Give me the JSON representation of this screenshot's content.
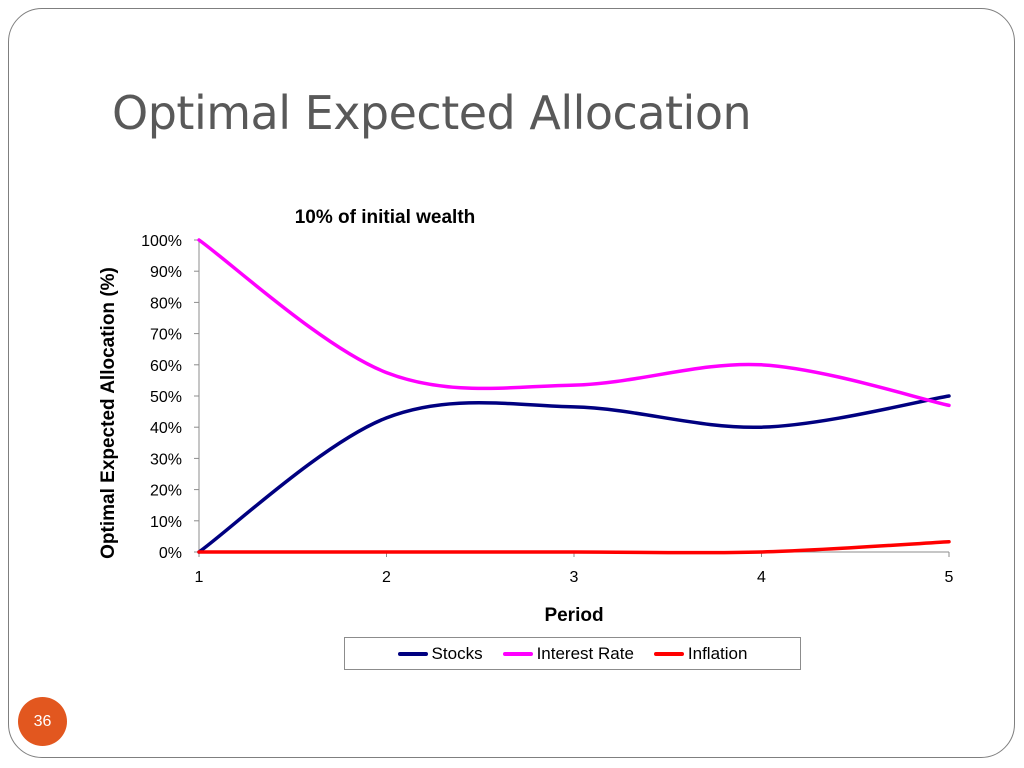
{
  "slide": {
    "title": "Optimal Expected Allocation",
    "number": "36"
  },
  "colors": {
    "frame": "#7f7f7f",
    "title": "#595959",
    "slide_number_bg": "#e2571f"
  },
  "chart_data": {
    "type": "line",
    "title": "10% of initial wealth",
    "xlabel": "Period",
    "ylabel": "Optimal Expected Allocation (%)",
    "x": [
      1,
      2,
      3,
      4,
      5
    ],
    "x_tick_labels": [
      "1",
      "2",
      "3",
      "4",
      "5"
    ],
    "ylim": [
      0,
      100
    ],
    "y_tick_labels": [
      "0%",
      "10%",
      "20%",
      "30%",
      "40%",
      "50%",
      "60%",
      "70%",
      "80%",
      "90%",
      "100%"
    ],
    "grid": false,
    "smooth": true,
    "legend_position": "bottom",
    "series": [
      {
        "name": "Stocks",
        "values": [
          0,
          43,
          46.5,
          40,
          50
        ],
        "color": "#000080"
      },
      {
        "name": "Interest Rate",
        "values": [
          100,
          57.5,
          53.5,
          60,
          47
        ],
        "color": "#ff00ff"
      },
      {
        "name": "Inflation",
        "values": [
          0,
          0,
          0,
          0,
          3.3
        ],
        "color": "#ff0000"
      }
    ]
  }
}
